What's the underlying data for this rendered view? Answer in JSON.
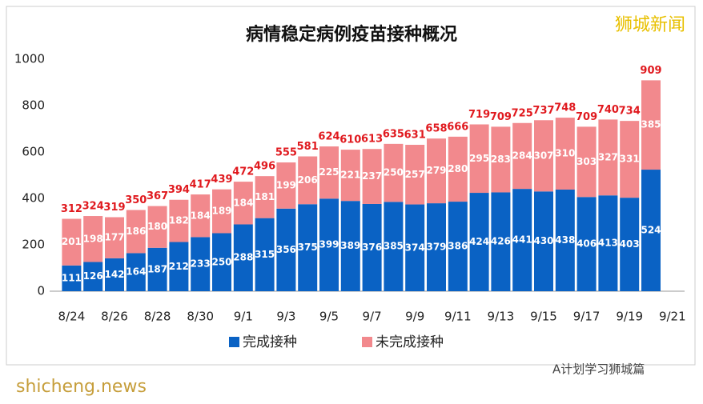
{
  "chart_data": {
    "type": "stacked_bar",
    "title": "病情稳定病例疫苗接种概况",
    "categories": [
      "8/24",
      null,
      "8/26",
      null,
      "8/28",
      null,
      "8/30",
      null,
      "9/1",
      null,
      "9/3",
      null,
      "9/5",
      null,
      "9/7",
      null,
      "9/9",
      null,
      "9/11",
      null,
      "9/13",
      null,
      "9/15",
      null,
      "9/17",
      null,
      "9/19",
      null,
      "9/21"
    ],
    "series": [
      {
        "name": "完成接种",
        "color": "#0a62c4",
        "values": [
          111,
          126,
          142,
          164,
          187,
          212,
          233,
          250,
          288,
          315,
          356,
          375,
          399,
          389,
          376,
          385,
          374,
          379,
          386,
          424,
          426,
          441,
          430,
          438,
          406,
          413,
          403,
          524,
          null
        ]
      },
      {
        "name": "未完成接种",
        "color": "#f2898d",
        "values": [
          201,
          198,
          177,
          186,
          180,
          182,
          184,
          189,
          184,
          181,
          199,
          206,
          225,
          221,
          237,
          250,
          257,
          279,
          280,
          295,
          283,
          284,
          307,
          310,
          303,
          327,
          331,
          385,
          null
        ]
      }
    ],
    "totals": [
      312,
      324,
      319,
      350,
      367,
      394,
      417,
      439,
      472,
      496,
      555,
      581,
      624,
      610,
      613,
      635,
      631,
      658,
      666,
      719,
      709,
      725,
      737,
      748,
      709,
      740,
      734,
      909,
      null
    ],
    "ylim": [
      0,
      1000
    ],
    "yticks": [
      0,
      200,
      400,
      600,
      800,
      1000
    ],
    "grid": false
  },
  "watermark": "狮城新闻",
  "site_watermark": "shicheng.news",
  "account_watermark": "A计划学习狮城篇"
}
